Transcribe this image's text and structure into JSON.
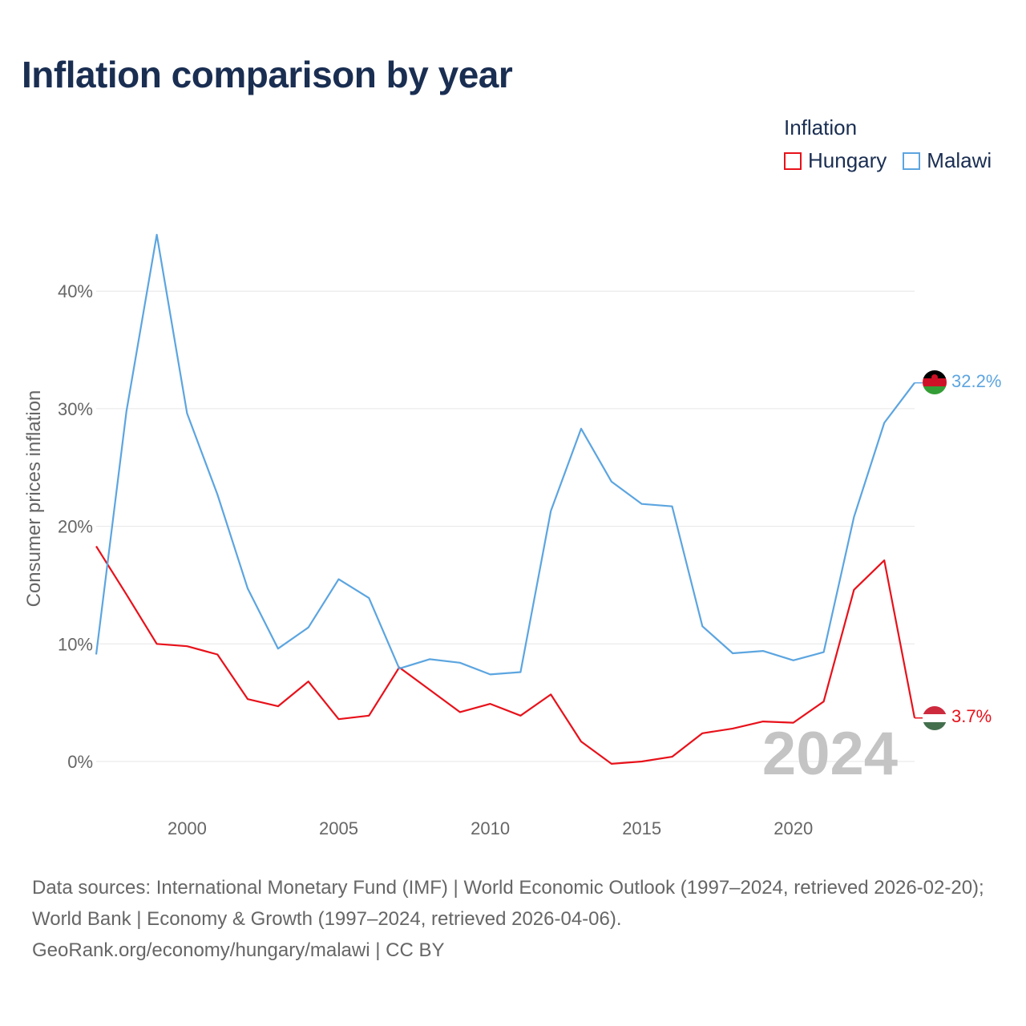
{
  "title": "Inflation comparison by year",
  "legend": {
    "title": "Inflation",
    "items": [
      {
        "label": "Hungary",
        "color": "#e8111a"
      },
      {
        "label": "Malawi",
        "color": "#5ca5e0"
      }
    ]
  },
  "year_watermark": "2024",
  "footer": {
    "sources": "Data sources: International Monetary Fund (IMF) | World Economic Outlook (1997–2024, retrieved 2026-02-20); World Bank | Economy & Growth (1997–2024, retrieved 2026-04-06).",
    "credit": "GeoRank.org/economy/hungary/malawi | CC BY"
  },
  "chart_data": {
    "type": "line",
    "title": "Inflation comparison by year",
    "xlabel": "",
    "ylabel": "Consumer prices inflation",
    "xlim": [
      1997,
      2024
    ],
    "ylim": [
      -4,
      48
    ],
    "xticks": [
      2000,
      2005,
      2010,
      2015,
      2020
    ],
    "yticks": [
      0,
      10,
      20,
      30,
      40
    ],
    "ytick_labels": [
      "0%",
      "10%",
      "20%",
      "30%",
      "40%"
    ],
    "grid": true,
    "legend_position": "top-right",
    "x": [
      1997,
      1998,
      1999,
      2000,
      2001,
      2002,
      2003,
      2004,
      2005,
      2006,
      2007,
      2008,
      2009,
      2010,
      2011,
      2012,
      2013,
      2014,
      2015,
      2016,
      2017,
      2018,
      2019,
      2020,
      2021,
      2022,
      2023,
      2024
    ],
    "series": [
      {
        "name": "Hungary",
        "color": "#e8111a",
        "end_label": "3.7%",
        "values": [
          18.3,
          14.2,
          10.0,
          9.8,
          9.1,
          5.3,
          4.7,
          6.8,
          3.6,
          3.9,
          8.0,
          6.1,
          4.2,
          4.9,
          3.9,
          5.7,
          1.7,
          -0.2,
          0.0,
          0.4,
          2.4,
          2.8,
          3.4,
          3.3,
          5.1,
          14.6,
          17.1,
          3.7
        ]
      },
      {
        "name": "Malawi",
        "color": "#5ca5e0",
        "end_label": "32.2%",
        "values": [
          9.1,
          29.8,
          44.8,
          29.6,
          22.7,
          14.7,
          9.6,
          11.4,
          15.5,
          13.9,
          7.9,
          8.7,
          8.4,
          7.4,
          7.6,
          21.3,
          28.3,
          23.8,
          21.9,
          21.7,
          11.5,
          9.2,
          9.4,
          8.6,
          9.3,
          20.8,
          28.8,
          32.2
        ]
      }
    ]
  }
}
